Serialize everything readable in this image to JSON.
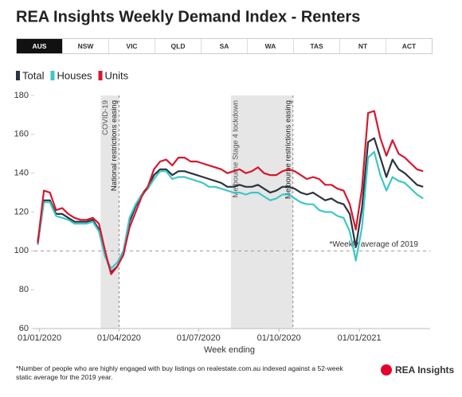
{
  "title": "REA Insights Weekly Demand Index - Renters",
  "tabs": [
    "AUS",
    "NSW",
    "VIC",
    "QLD",
    "SA",
    "WA",
    "TAS",
    "NT",
    "ACT"
  ],
  "selected_tab": 0,
  "footnote": "*Number of people who are highly engaged with buy listings on realestate.com.au indexed against a 52-week static average for the 2019 year.",
  "logo": "REA Insights",
  "chart_data": {
    "type": "line",
    "xlabel": "Week ending",
    "x": [
      "2019-12-30",
      "2020-01-06",
      "2020-01-13",
      "2020-01-20",
      "2020-01-27",
      "2020-02-03",
      "2020-02-10",
      "2020-02-17",
      "2020-02-24",
      "2020-03-02",
      "2020-03-09",
      "2020-03-16",
      "2020-03-23",
      "2020-03-30",
      "2020-04-06",
      "2020-04-13",
      "2020-04-20",
      "2020-04-27",
      "2020-05-04",
      "2020-05-11",
      "2020-05-18",
      "2020-05-25",
      "2020-06-01",
      "2020-06-08",
      "2020-06-15",
      "2020-06-22",
      "2020-06-29",
      "2020-07-06",
      "2020-07-13",
      "2020-07-20",
      "2020-07-27",
      "2020-08-03",
      "2020-08-10",
      "2020-08-17",
      "2020-08-24",
      "2020-08-31",
      "2020-09-07",
      "2020-09-14",
      "2020-09-21",
      "2020-09-28",
      "2020-10-05",
      "2020-10-12",
      "2020-10-19",
      "2020-10-26",
      "2020-11-02",
      "2020-11-09",
      "2020-11-16",
      "2020-11-23",
      "2020-11-30",
      "2020-12-07",
      "2020-12-14",
      "2020-12-21",
      "2020-12-28",
      "2021-01-04",
      "2021-01-11",
      "2021-01-18",
      "2021-01-25",
      "2021-02-01",
      "2021-02-08",
      "2021-02-15",
      "2021-02-22",
      "2021-03-01",
      "2021-03-08",
      "2021-03-15"
    ],
    "series": [
      {
        "name": "Total",
        "color": "#2b3440",
        "values": [
          105,
          126,
          126,
          119,
          119,
          117,
          115,
          115,
          115,
          116,
          111,
          98,
          89,
          92,
          98,
          115,
          123,
          129,
          133,
          139,
          142,
          142,
          139,
          141,
          141,
          140,
          139,
          138,
          137,
          136,
          135,
          133,
          133,
          134,
          133,
          133,
          134,
          132,
          130,
          131,
          133,
          133,
          132,
          130,
          129,
          130,
          128,
          126,
          127,
          125,
          124,
          119,
          102,
          122,
          156,
          158,
          148,
          138,
          147,
          142,
          140,
          137,
          134,
          133
        ]
      },
      {
        "name": "Houses",
        "color": "#3cc7c8",
        "values": [
          103,
          125,
          125,
          118,
          117,
          116,
          114,
          114,
          114,
          115,
          110,
          97,
          91,
          94,
          100,
          117,
          124,
          129,
          132,
          137,
          141,
          141,
          137,
          138,
          138,
          137,
          136,
          135,
          133,
          133,
          132,
          131,
          130,
          130,
          129,
          130,
          130,
          128,
          126,
          127,
          129,
          129,
          127,
          125,
          124,
          124,
          121,
          120,
          120,
          118,
          117,
          110,
          95,
          112,
          148,
          151,
          139,
          131,
          138,
          136,
          135,
          132,
          129,
          127
        ]
      },
      {
        "name": "Units",
        "color": "#d7172f",
        "values": [
          104,
          131,
          130,
          121,
          122,
          119,
          117,
          116,
          116,
          117,
          114,
          100,
          88,
          92,
          98,
          112,
          120,
          128,
          133,
          142,
          146,
          147,
          144,
          148,
          148,
          146,
          146,
          145,
          144,
          143,
          142,
          140,
          141,
          142,
          140,
          141,
          143,
          140,
          139,
          139,
          141,
          142,
          141,
          139,
          137,
          138,
          137,
          134,
          134,
          132,
          131,
          124,
          111,
          132,
          171,
          172,
          158,
          149,
          157,
          150,
          148,
          145,
          142,
          141
        ]
      }
    ],
    "xlim": [
      "2019-12-26",
      "2021-03-23"
    ],
    "xticks": [
      {
        "value": "2020-01-01",
        "label": "01/01/2020"
      },
      {
        "value": "2020-04-01",
        "label": "01/04/2020"
      },
      {
        "value": "2020-07-01",
        "label": "01/07/2020"
      },
      {
        "value": "2020-10-01",
        "label": "01/10/2020"
      },
      {
        "value": "2021-01-01",
        "label": "01/01/2021"
      }
    ],
    "ylim": [
      60,
      180
    ],
    "yticks": [
      60,
      80,
      100,
      120,
      140,
      160,
      180
    ],
    "reference_line": {
      "y": 100,
      "label": "*Weekly average of 2019"
    },
    "shaded_periods": [
      {
        "start": "2020-03-11",
        "end": "2020-04-01",
        "label": "COVID-19"
      },
      {
        "start": "2020-08-07",
        "end": "2020-10-17",
        "label": "Melbourne Stage 4 lockdown"
      }
    ],
    "event_lines": [
      {
        "x": "2020-04-01",
        "label": "National restrictions easing"
      },
      {
        "x": "2020-10-17",
        "label": "Melbourne restrictions easing"
      }
    ],
    "legend": "top-left"
  }
}
